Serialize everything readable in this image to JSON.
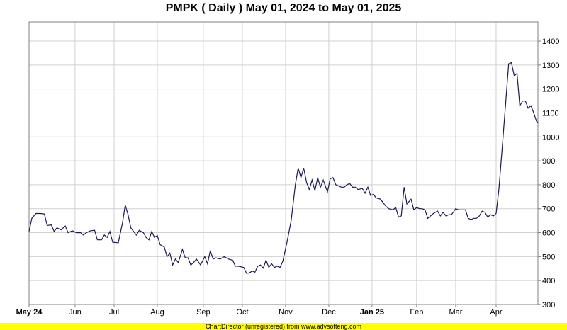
{
  "title": "PMPK ( Daily ) May 01, 2024 to May 01, 2025",
  "footer": "ChartDirector (unregistered) from www.advsofteng.com",
  "colors": {
    "line": "#1a1a4e",
    "grid": "#d0d0d0",
    "footer_bg": "#ffff00"
  },
  "chart_data": {
    "type": "line",
    "title": "PMPK ( Daily ) May 01, 2024 to May 01, 2025",
    "x_start": "2024-05-01",
    "x_end": "2025-05-01",
    "ylim": [
      300,
      1480
    ],
    "y_axis_position": "right",
    "yticks": [
      300,
      400,
      500,
      600,
      700,
      800,
      900,
      1000,
      1100,
      1200,
      1300,
      1400
    ],
    "xticks": [
      {
        "date": "2024-05-01",
        "label": "May 24",
        "bold": true
      },
      {
        "date": "2024-06-03",
        "label": "Jun",
        "bold": false
      },
      {
        "date": "2024-07-01",
        "label": "Jul",
        "bold": false
      },
      {
        "date": "2024-08-01",
        "label": "Aug",
        "bold": false
      },
      {
        "date": "2024-09-03",
        "label": "Sep",
        "bold": false
      },
      {
        "date": "2024-10-01",
        "label": "Oct",
        "bold": false
      },
      {
        "date": "2024-11-01",
        "label": "Nov",
        "bold": false
      },
      {
        "date": "2024-12-02",
        "label": "Dec",
        "bold": false
      },
      {
        "date": "2025-01-02",
        "label": "Jan 25",
        "bold": true
      },
      {
        "date": "2025-02-03",
        "label": "Feb",
        "bold": false
      },
      {
        "date": "2025-03-03",
        "label": "Mar",
        "bold": false
      },
      {
        "date": "2025-04-01",
        "label": "Apr",
        "bold": false
      }
    ],
    "grid": true,
    "series": [
      {
        "points": [
          [
            "2024-05-01",
            605
          ],
          [
            "2024-05-03",
            660
          ],
          [
            "2024-05-06",
            680
          ],
          [
            "2024-05-09",
            680
          ],
          [
            "2024-05-12",
            678
          ],
          [
            "2024-05-14",
            630
          ],
          [
            "2024-05-17",
            632
          ],
          [
            "2024-05-19",
            605
          ],
          [
            "2024-05-21",
            620
          ],
          [
            "2024-05-24",
            612
          ],
          [
            "2024-05-27",
            628
          ],
          [
            "2024-05-29",
            600
          ],
          [
            "2024-06-01",
            608
          ],
          [
            "2024-06-04",
            600
          ],
          [
            "2024-06-07",
            600
          ],
          [
            "2024-06-09",
            590
          ],
          [
            "2024-06-11",
            600
          ],
          [
            "2024-06-14",
            608
          ],
          [
            "2024-06-17",
            610
          ],
          [
            "2024-06-19",
            570
          ],
          [
            "2024-06-22",
            570
          ],
          [
            "2024-06-24",
            590
          ],
          [
            "2024-06-26",
            580
          ],
          [
            "2024-06-28",
            605
          ],
          [
            "2024-06-30",
            560
          ],
          [
            "2024-07-04",
            558
          ],
          [
            "2024-07-07",
            640
          ],
          [
            "2024-07-09",
            715
          ],
          [
            "2024-07-11",
            675
          ],
          [
            "2024-07-13",
            620
          ],
          [
            "2024-07-15",
            605
          ],
          [
            "2024-07-17",
            590
          ],
          [
            "2024-07-19",
            610
          ],
          [
            "2024-07-22",
            600
          ],
          [
            "2024-07-24",
            580
          ],
          [
            "2024-07-26",
            570
          ],
          [
            "2024-07-28",
            605
          ],
          [
            "2024-07-30",
            580
          ],
          [
            "2024-08-01",
            588
          ],
          [
            "2024-08-03",
            550
          ],
          [
            "2024-08-06",
            540
          ],
          [
            "2024-08-08",
            500
          ],
          [
            "2024-08-10",
            515
          ],
          [
            "2024-08-12",
            465
          ],
          [
            "2024-08-14",
            490
          ],
          [
            "2024-08-16",
            475
          ],
          [
            "2024-08-19",
            530
          ],
          [
            "2024-08-21",
            495
          ],
          [
            "2024-08-23",
            495
          ],
          [
            "2024-08-25",
            465
          ],
          [
            "2024-08-27",
            475
          ],
          [
            "2024-08-29",
            490
          ],
          [
            "2024-09-01",
            465
          ],
          [
            "2024-09-04",
            500
          ],
          [
            "2024-09-06",
            470
          ],
          [
            "2024-09-08",
            525
          ],
          [
            "2024-09-10",
            490
          ],
          [
            "2024-09-12",
            495
          ],
          [
            "2024-09-15",
            490
          ],
          [
            "2024-09-18",
            500
          ],
          [
            "2024-09-21",
            490
          ],
          [
            "2024-09-24",
            485
          ],
          [
            "2024-09-26",
            460
          ],
          [
            "2024-09-28",
            460
          ],
          [
            "2024-10-02",
            455
          ],
          [
            "2024-10-04",
            430
          ],
          [
            "2024-10-06",
            432
          ],
          [
            "2024-10-08",
            440
          ],
          [
            "2024-10-10",
            435
          ],
          [
            "2024-10-12",
            460
          ],
          [
            "2024-10-14",
            465
          ],
          [
            "2024-10-16",
            452
          ],
          [
            "2024-10-18",
            485
          ],
          [
            "2024-10-20",
            455
          ],
          [
            "2024-10-22",
            470
          ],
          [
            "2024-10-24",
            455
          ],
          [
            "2024-10-26",
            460
          ],
          [
            "2024-10-28",
            455
          ],
          [
            "2024-10-30",
            480
          ],
          [
            "2024-11-02",
            560
          ],
          [
            "2024-11-05",
            650
          ],
          [
            "2024-11-08",
            800
          ],
          [
            "2024-11-10",
            870
          ],
          [
            "2024-11-12",
            830
          ],
          [
            "2024-11-14",
            870
          ],
          [
            "2024-11-16",
            810
          ],
          [
            "2024-11-18",
            780
          ],
          [
            "2024-11-20",
            820
          ],
          [
            "2024-11-22",
            775
          ],
          [
            "2024-11-24",
            830
          ],
          [
            "2024-11-26",
            790
          ],
          [
            "2024-11-28",
            820
          ],
          [
            "2024-12-01",
            770
          ],
          [
            "2024-12-03",
            825
          ],
          [
            "2024-12-05",
            830
          ],
          [
            "2024-12-07",
            800
          ],
          [
            "2024-12-09",
            795
          ],
          [
            "2024-12-11",
            790
          ],
          [
            "2024-12-13",
            790
          ],
          [
            "2024-12-15",
            800
          ],
          [
            "2024-12-17",
            805
          ],
          [
            "2024-12-19",
            790
          ],
          [
            "2024-12-21",
            790
          ],
          [
            "2024-12-23",
            780
          ],
          [
            "2024-12-26",
            785
          ],
          [
            "2024-12-28",
            765
          ],
          [
            "2024-12-30",
            790
          ],
          [
            "2025-01-01",
            755
          ],
          [
            "2025-01-03",
            760
          ],
          [
            "2025-01-05",
            745
          ],
          [
            "2025-01-08",
            740
          ],
          [
            "2025-01-10",
            725
          ],
          [
            "2025-01-12",
            710
          ],
          [
            "2025-01-14",
            700
          ],
          [
            "2025-01-17",
            695
          ],
          [
            "2025-01-19",
            705
          ],
          [
            "2025-01-21",
            665
          ],
          [
            "2025-01-23",
            670
          ],
          [
            "2025-01-25",
            790
          ],
          [
            "2025-01-27",
            720
          ],
          [
            "2025-01-30",
            740
          ],
          [
            "2025-02-01",
            695
          ],
          [
            "2025-02-03",
            705
          ],
          [
            "2025-02-05",
            700
          ],
          [
            "2025-02-07",
            700
          ],
          [
            "2025-02-09",
            695
          ],
          [
            "2025-02-11",
            660
          ],
          [
            "2025-02-13",
            670
          ],
          [
            "2025-02-15",
            680
          ],
          [
            "2025-02-18",
            690
          ],
          [
            "2025-02-20",
            670
          ],
          [
            "2025-02-22",
            685
          ],
          [
            "2025-02-24",
            670
          ],
          [
            "2025-02-26",
            675
          ],
          [
            "2025-02-28",
            675
          ],
          [
            "2025-03-03",
            700
          ],
          [
            "2025-03-05",
            695
          ],
          [
            "2025-03-07",
            695
          ],
          [
            "2025-03-10",
            695
          ],
          [
            "2025-03-12",
            660
          ],
          [
            "2025-03-14",
            655
          ],
          [
            "2025-03-16",
            660
          ],
          [
            "2025-03-18",
            660
          ],
          [
            "2025-03-20",
            670
          ],
          [
            "2025-03-22",
            690
          ],
          [
            "2025-03-24",
            685
          ],
          [
            "2025-03-26",
            665
          ],
          [
            "2025-03-28",
            675
          ],
          [
            "2025-03-30",
            670
          ],
          [
            "2025-04-01",
            680
          ],
          [
            "2025-04-03",
            780
          ],
          [
            "2025-04-06",
            1000
          ],
          [
            "2025-04-10",
            1305
          ],
          [
            "2025-04-12",
            1310
          ],
          [
            "2025-04-14",
            1255
          ],
          [
            "2025-04-16",
            1265
          ],
          [
            "2025-04-18",
            1130
          ],
          [
            "2025-04-20",
            1150
          ],
          [
            "2025-04-22",
            1150
          ],
          [
            "2025-04-24",
            1120
          ],
          [
            "2025-04-26",
            1130
          ],
          [
            "2025-04-28",
            1100
          ],
          [
            "2025-04-30",
            1065
          ],
          [
            "2025-05-01",
            1060
          ]
        ]
      }
    ]
  }
}
